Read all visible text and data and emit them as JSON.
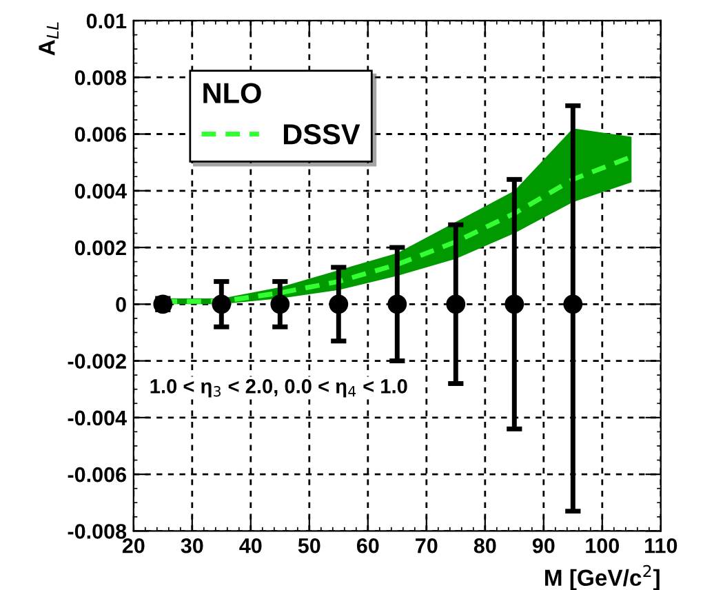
{
  "chart_data": {
    "type": "scatter",
    "xlabel": "M [GeV/c$^{2}$]",
    "ylabel": "A$_{LL}$",
    "legend_title": "NLO",
    "annotations": [
      "1.0 < η$_{3}$ < 2.0, 0.0 < η$_{4}$ < 1.0"
    ],
    "xlim": [
      20,
      110
    ],
    "xticks": [
      20,
      30,
      40,
      50,
      60,
      70,
      80,
      90,
      100,
      110
    ],
    "ylim": [
      -0.008,
      0.01
    ],
    "yticks": [
      -0.008,
      -0.006,
      -0.004,
      -0.002,
      0,
      0.002,
      0.004,
      0.006,
      0.008,
      0.01
    ],
    "grid": true,
    "legend": "top left",
    "series": [
      {
        "type": "line",
        "name": "DSSV",
        "color": "#33ff33",
        "line_style": "dashed",
        "marker": "none",
        "x": [
          25,
          35,
          45,
          55,
          65,
          75,
          85,
          95,
          105
        ],
        "values": [
          0.0001,
          0.0001,
          0.0004,
          0.0008,
          0.0014,
          0.0022,
          0.0032,
          0.0044,
          0.0052
        ],
        "lower": [
          0,
          0,
          0.0002,
          0.0005,
          0.001,
          0.0016,
          0.0025,
          0.0036,
          0.0043
        ],
        "upper": [
          0.0002,
          0.0002,
          0.0006,
          0.0012,
          0.0018,
          0.0029,
          0.004,
          0.0062,
          0.0059
        ]
      },
      {
        "color": "#000000",
        "marker": "circle",
        "x": [
          25,
          35,
          45,
          55,
          65,
          75,
          85,
          95
        ],
        "values": [
          0,
          0,
          0,
          0,
          0,
          0,
          0,
          0
        ],
        "errors": [
          0.0002,
          0.0008,
          0.0008,
          0.0013,
          0.002,
          0.0028,
          0.0044,
          [
            -0.0073,
            0.007
          ]
        ]
      }
    ]
  }
}
